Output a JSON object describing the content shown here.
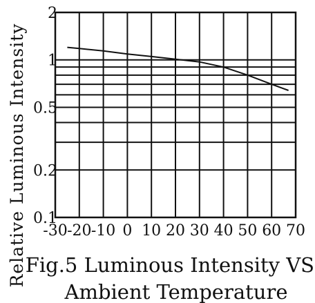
{
  "chart_data": {
    "type": "line",
    "title": "Fig.5 Luminous Intensity VS.",
    "subtitle": "Ambient Temperature",
    "xlabel": "",
    "ylabel": "Relative Luminous Intensity",
    "xlim": [
      -30,
      70
    ],
    "ylim": [
      0.1,
      2
    ],
    "yscale": "log",
    "grid": true,
    "x_ticks": [
      "-30",
      "-20",
      "-10",
      "0",
      "10",
      "20",
      "30",
      "40",
      "50",
      "60",
      "70"
    ],
    "y_ticks": [
      {
        "value": 0.1,
        "label": "0.1"
      },
      {
        "value": 0.2,
        "label": "0.2"
      },
      {
        "value": 0.5,
        "label": "0.5"
      },
      {
        "value": 1,
        "label": "1"
      },
      {
        "value": 2,
        "label": "2"
      }
    ],
    "y_gridlines": [
      0.1,
      0.2,
      0.3,
      0.4,
      0.5,
      0.6,
      0.7,
      0.8,
      0.9,
      1,
      2
    ],
    "series": [
      {
        "x": [
          -25,
          -20,
          -10,
          0,
          10,
          20,
          25,
          30,
          40,
          50,
          60,
          67
        ],
        "y": [
          1.2,
          1.18,
          1.14,
          1.09,
          1.05,
          1.01,
          0.99,
          0.97,
          0.9,
          0.8,
          0.7,
          0.64
        ]
      }
    ],
    "colors": {
      "line": "#111111",
      "grid": "#111111"
    }
  }
}
